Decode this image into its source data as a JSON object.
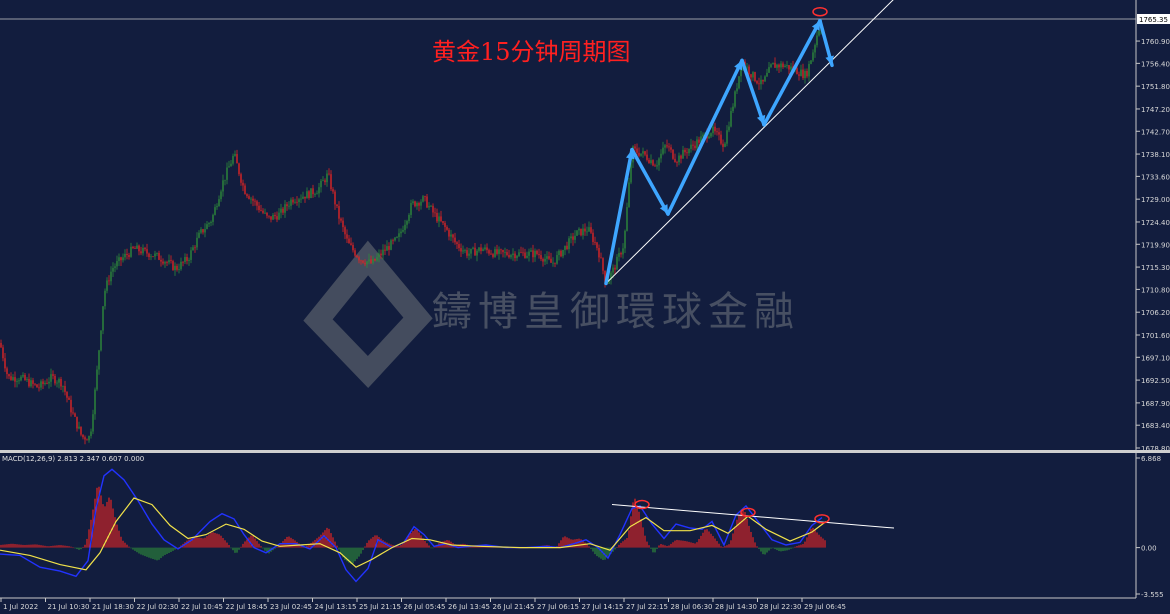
{
  "chart_data": [
    {
      "type": "candlestick",
      "title": "黄金15分钟周期图",
      "watermark": "鑄博皇御環球金融",
      "y_ticks": [
        "1765.35",
        "1760.90",
        "1756.40",
        "1751.80",
        "1747.20",
        "1742.70",
        "1738.10",
        "1733.60",
        "1729.00",
        "1724.40",
        "1719.90",
        "1715.30",
        "1710.80",
        "1706.20",
        "1701.60",
        "1697.10",
        "1692.50",
        "1687.90",
        "1683.40",
        "1678.80"
      ],
      "ylim": [
        1678.8,
        1765.35
      ],
      "current_price": "1765.35",
      "x_ticks": [
        "1 Jul 2022",
        "21 Jul 10:30",
        "21 Jul 18:30",
        "22 Jul 02:30",
        "22 Jul 10:45",
        "22 Jul 18:45",
        "23 Jul 02:45",
        "24 Jul 13:15",
        "25 Jul 21:15",
        "26 Jul 05:45",
        "26 Jul 13:45",
        "26 Jul 21:45",
        "27 Jul 06:15",
        "27 Jul 14:15",
        "27 Jul 22:15",
        "28 Jul 06:30",
        "28 Jul 14:30",
        "28 Jul 22:30",
        "29 Jul 06:45"
      ],
      "price_path": [
        [
          0,
          1700
        ],
        [
          8,
          1693
        ],
        [
          20,
          1693
        ],
        [
          38,
          1691
        ],
        [
          52,
          1693
        ],
        [
          62,
          1692
        ],
        [
          72,
          1686
        ],
        [
          82,
          1681
        ],
        [
          90,
          1681
        ],
        [
          96,
          1692
        ],
        [
          104,
          1710
        ],
        [
          112,
          1715
        ],
        [
          122,
          1717
        ],
        [
          134,
          1719
        ],
        [
          150,
          1718
        ],
        [
          162,
          1717
        ],
        [
          176,
          1715
        ],
        [
          188,
          1717
        ],
        [
          200,
          1722
        ],
        [
          212,
          1725
        ],
        [
          222,
          1732
        ],
        [
          234,
          1738
        ],
        [
          244,
          1731
        ],
        [
          256,
          1728
        ],
        [
          268,
          1725
        ],
        [
          280,
          1726
        ],
        [
          292,
          1729
        ],
        [
          308,
          1730
        ],
        [
          318,
          1731
        ],
        [
          328,
          1734
        ],
        [
          338,
          1726
        ],
        [
          348,
          1720
        ],
        [
          360,
          1717
        ],
        [
          372,
          1716
        ],
        [
          386,
          1719
        ],
        [
          398,
          1721
        ],
        [
          412,
          1728
        ],
        [
          424,
          1729
        ],
        [
          434,
          1726
        ],
        [
          446,
          1723
        ],
        [
          456,
          1720
        ],
        [
          468,
          1718
        ],
        [
          482,
          1719
        ],
        [
          496,
          1718
        ],
        [
          510,
          1718
        ],
        [
          524,
          1718
        ],
        [
          538,
          1718
        ],
        [
          552,
          1716
        ],
        [
          564,
          1719
        ],
        [
          576,
          1722
        ],
        [
          588,
          1723
        ],
        [
          598,
          1719
        ],
        [
          606,
          1712
        ],
        [
          614,
          1715
        ],
        [
          624,
          1720
        ],
        [
          632,
          1739
        ],
        [
          644,
          1738
        ],
        [
          656,
          1736
        ],
        [
          666,
          1740
        ],
        [
          676,
          1737
        ],
        [
          688,
          1739
        ],
        [
          700,
          1741
        ],
        [
          712,
          1743
        ],
        [
          724,
          1740
        ],
        [
          734,
          1749
        ],
        [
          742,
          1757
        ],
        [
          752,
          1754
        ],
        [
          762,
          1752
        ],
        [
          772,
          1756
        ],
        [
          784,
          1756
        ],
        [
          796,
          1755
        ],
        [
          806,
          1754
        ],
        [
          812,
          1758
        ],
        [
          818,
          1763
        ],
        [
          822,
          1765
        ]
      ],
      "annotations": {
        "zigzag_arrow_1": [
          [
            606,
            1712
          ],
          [
            632,
            1739
          ],
          [
            668,
            1726
          ],
          [
            742,
            1757
          ],
          [
            764,
            1744
          ],
          [
            820,
            1765
          ],
          [
            832,
            1756
          ]
        ],
        "support_line": [
          [
            606,
            1712
          ],
          [
            894,
            1765.35
          ]
        ],
        "top_marker": [
          820,
          1765
        ]
      }
    },
    {
      "type": "macd",
      "label": "MACD(12,26,9) 2.813 2.347 0.607 0.000",
      "y_ticks": [
        "6.868",
        "0.00",
        "-3.555"
      ],
      "ylim": [
        -3.555,
        6.868
      ],
      "histogram": [
        [
          0,
          0.2
        ],
        [
          12,
          0.3
        ],
        [
          24,
          0.2
        ],
        [
          36,
          0.25
        ],
        [
          48,
          0.1
        ],
        [
          60,
          0.2
        ],
        [
          70,
          0.1
        ],
        [
          80,
          -0.2
        ],
        [
          86,
          0.3
        ],
        [
          92,
          2.5
        ],
        [
          98,
          5.0
        ],
        [
          104,
          3.0
        ],
        [
          110,
          4.0
        ],
        [
          116,
          2.0
        ],
        [
          122,
          0.6
        ],
        [
          130,
          0.0
        ],
        [
          140,
          -0.5
        ],
        [
          150,
          -0.8
        ],
        [
          158,
          -1.0
        ],
        [
          164,
          -0.6
        ],
        [
          172,
          -0.3
        ],
        [
          180,
          0.1
        ],
        [
          188,
          0.6
        ],
        [
          196,
          0.8
        ],
        [
          204,
          0.7
        ],
        [
          212,
          1.2
        ],
        [
          220,
          1.0
        ],
        [
          228,
          0.3
        ],
        [
          236,
          -0.5
        ],
        [
          244,
          0.4
        ],
        [
          252,
          1.0
        ],
        [
          260,
          0.2
        ],
        [
          268,
          -0.5
        ],
        [
          278,
          0.1
        ],
        [
          288,
          0.9
        ],
        [
          296,
          0.5
        ],
        [
          304,
          0.0
        ],
        [
          312,
          0.4
        ],
        [
          320,
          0.9
        ],
        [
          328,
          1.6
        ],
        [
          336,
          0.3
        ],
        [
          344,
          -0.9
        ],
        [
          352,
          -1.3
        ],
        [
          360,
          -0.6
        ],
        [
          368,
          0.5
        ],
        [
          376,
          1.0
        ],
        [
          384,
          0.5
        ],
        [
          392,
          0.2
        ],
        [
          400,
          0.1
        ],
        [
          408,
          0.9
        ],
        [
          416,
          1.5
        ],
        [
          424,
          0.6
        ],
        [
          432,
          -0.1
        ],
        [
          440,
          0.4
        ],
        [
          448,
          0.6
        ],
        [
          456,
          0.2
        ],
        [
          464,
          0.3
        ],
        [
          472,
          0.1
        ],
        [
          480,
          0.1
        ],
        [
          488,
          0.2
        ],
        [
          496,
          0.1
        ],
        [
          508,
          0.0
        ],
        [
          518,
          0.0
        ],
        [
          528,
          0.0
        ],
        [
          538,
          0.1
        ],
        [
          548,
          0.2
        ],
        [
          556,
          0.0
        ],
        [
          564,
          0.9
        ],
        [
          572,
          0.6
        ],
        [
          580,
          0.7
        ],
        [
          588,
          0.2
        ],
        [
          596,
          -0.6
        ],
        [
          604,
          -1.0
        ],
        [
          612,
          -0.4
        ],
        [
          620,
          0.3
        ],
        [
          628,
          0.8
        ],
        [
          634,
          4.0
        ],
        [
          640,
          2.5
        ],
        [
          646,
          0.6
        ],
        [
          654,
          -0.5
        ],
        [
          660,
          0.3
        ],
        [
          668,
          0.1
        ],
        [
          676,
          0.6
        ],
        [
          686,
          0.5
        ],
        [
          696,
          0.3
        ],
        [
          706,
          1.5
        ],
        [
          714,
          0.8
        ],
        [
          722,
          0.0
        ],
        [
          730,
          0.3
        ],
        [
          738,
          2.4
        ],
        [
          744,
          3.0
        ],
        [
          750,
          1.4
        ],
        [
          756,
          0.2
        ],
        [
          764,
          -0.6
        ],
        [
          772,
          0.0
        ],
        [
          780,
          -0.3
        ],
        [
          788,
          -0.2
        ],
        [
          796,
          0.1
        ],
        [
          804,
          0.3
        ],
        [
          812,
          1.6
        ],
        [
          820,
          0.9
        ],
        [
          826,
          0.5
        ]
      ],
      "macd_line": [
        [
          0,
          -0.5
        ],
        [
          20,
          -0.6
        ],
        [
          40,
          -1.5
        ],
        [
          60,
          -1.8
        ],
        [
          76,
          -2.2
        ],
        [
          88,
          -1.0
        ],
        [
          96,
          3.0
        ],
        [
          104,
          5.5
        ],
        [
          112,
          6.0
        ],
        [
          124,
          5.2
        ],
        [
          138,
          3.6
        ],
        [
          152,
          1.8
        ],
        [
          164,
          0.6
        ],
        [
          178,
          -0.1
        ],
        [
          192,
          0.6
        ],
        [
          210,
          2.0
        ],
        [
          222,
          2.6
        ],
        [
          234,
          2.2
        ],
        [
          244,
          1.0
        ],
        [
          254,
          0.0
        ],
        [
          266,
          -0.4
        ],
        [
          280,
          0.3
        ],
        [
          296,
          0.3
        ],
        [
          310,
          -0.1
        ],
        [
          324,
          0.9
        ],
        [
          336,
          0.0
        ],
        [
          346,
          -1.7
        ],
        [
          356,
          -2.6
        ],
        [
          368,
          -1.6
        ],
        [
          378,
          0.6
        ],
        [
          392,
          0.0
        ],
        [
          404,
          0.4
        ],
        [
          414,
          1.6
        ],
        [
          424,
          1.0
        ],
        [
          434,
          0.1
        ],
        [
          446,
          0.3
        ],
        [
          458,
          0.0
        ],
        [
          470,
          0.1
        ],
        [
          486,
          0.2
        ],
        [
          506,
          0.0
        ],
        [
          526,
          0.0
        ],
        [
          546,
          0.1
        ],
        [
          560,
          0.0
        ],
        [
          574,
          0.3
        ],
        [
          586,
          0.6
        ],
        [
          598,
          0.0
        ],
        [
          608,
          -0.8
        ],
        [
          620,
          1.0
        ],
        [
          632,
          3.0
        ],
        [
          640,
          3.2
        ],
        [
          652,
          1.8
        ],
        [
          664,
          0.7
        ],
        [
          676,
          1.8
        ],
        [
          690,
          1.5
        ],
        [
          702,
          1.4
        ],
        [
          712,
          2.0
        ],
        [
          724,
          0.2
        ],
        [
          736,
          2.5
        ],
        [
          746,
          3.2
        ],
        [
          760,
          1.8
        ],
        [
          772,
          0.6
        ],
        [
          786,
          0.2
        ],
        [
          800,
          0.4
        ],
        [
          812,
          1.7
        ],
        [
          822,
          2.3
        ]
      ],
      "signal_line": [
        [
          0,
          -0.2
        ],
        [
          30,
          -0.6
        ],
        [
          60,
          -1.3
        ],
        [
          86,
          -1.7
        ],
        [
          100,
          -0.4
        ],
        [
          116,
          2.0
        ],
        [
          134,
          3.8
        ],
        [
          152,
          3.3
        ],
        [
          170,
          1.7
        ],
        [
          188,
          0.7
        ],
        [
          206,
          1.0
        ],
        [
          226,
          1.8
        ],
        [
          244,
          1.4
        ],
        [
          262,
          0.5
        ],
        [
          280,
          0.1
        ],
        [
          300,
          0.2
        ],
        [
          320,
          0.3
        ],
        [
          340,
          -0.4
        ],
        [
          356,
          -1.5
        ],
        [
          372,
          -0.9
        ],
        [
          392,
          0.0
        ],
        [
          412,
          0.7
        ],
        [
          430,
          0.6
        ],
        [
          452,
          0.2
        ],
        [
          480,
          0.1
        ],
        [
          520,
          0.0
        ],
        [
          560,
          0.0
        ],
        [
          590,
          0.3
        ],
        [
          610,
          -0.2
        ],
        [
          630,
          1.6
        ],
        [
          646,
          2.3
        ],
        [
          664,
          1.3
        ],
        [
          690,
          1.3
        ],
        [
          712,
          1.7
        ],
        [
          728,
          1.1
        ],
        [
          748,
          2.4
        ],
        [
          766,
          1.4
        ],
        [
          790,
          0.5
        ],
        [
          812,
          1.2
        ],
        [
          826,
          2.0
        ]
      ],
      "annotations": {
        "trend_line": [
          [
            612,
            3.3
          ],
          [
            894,
            1.5
          ]
        ],
        "peak_markers": [
          [
            642,
            3.3
          ],
          [
            748,
            2.7
          ],
          [
            822,
            2.2
          ]
        ]
      }
    }
  ]
}
